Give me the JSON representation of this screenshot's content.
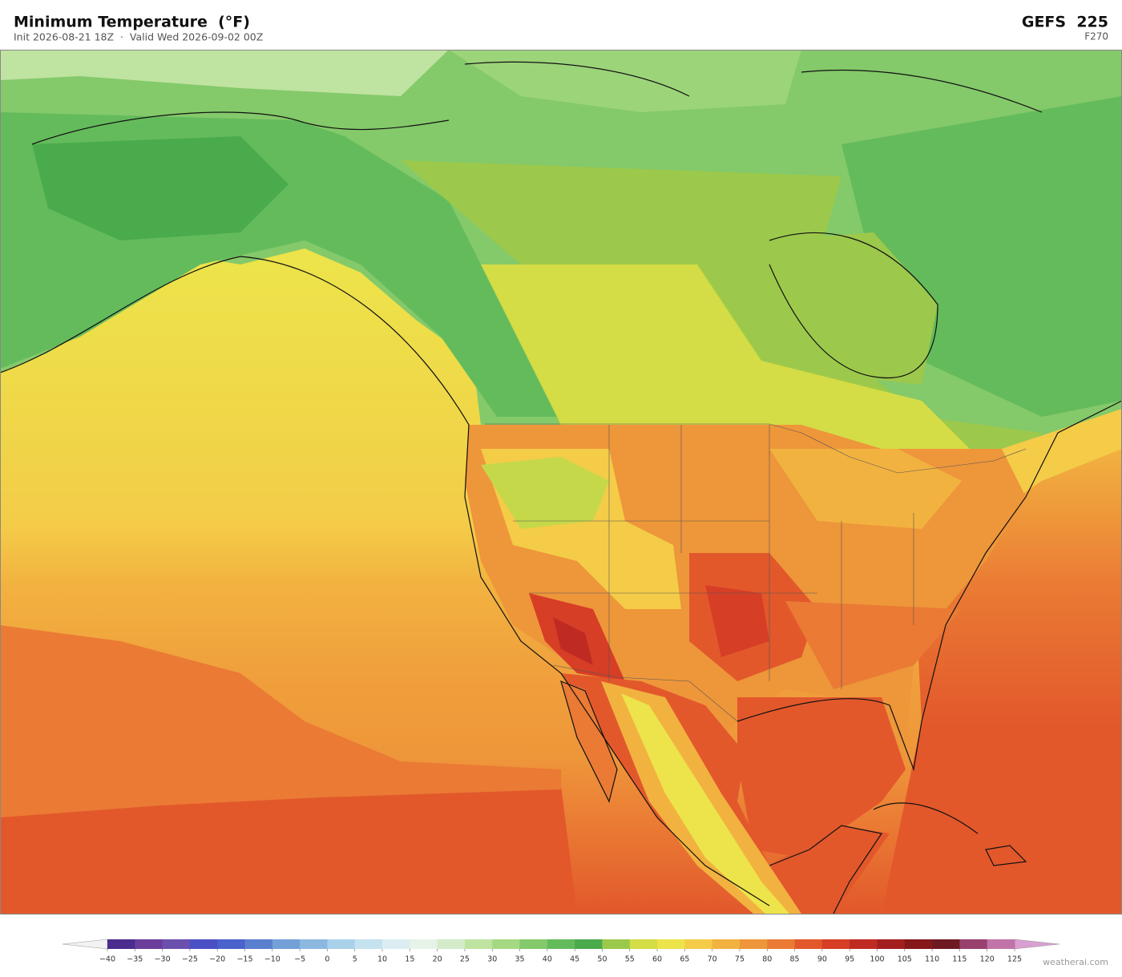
{
  "header": {
    "title": "Minimum Temperature  (°F)",
    "subtitle": "Init 2026-08-21 18Z  ·  Valid Wed 2026-09-02 00Z",
    "model": "GEFS  225",
    "forecast_hour": "F270"
  },
  "colorbar": {
    "ticks": [
      {
        "value": -40,
        "label": "−40"
      },
      {
        "value": -35,
        "label": "−35"
      },
      {
        "value": -30,
        "label": "−30"
      },
      {
        "value": -25,
        "label": "−25"
      },
      {
        "value": -20,
        "label": "−20"
      },
      {
        "value": -15,
        "label": "−15"
      },
      {
        "value": -10,
        "label": "−10"
      },
      {
        "value": -5,
        "label": "−5"
      },
      0,
      5,
      10,
      15,
      20,
      25,
      30,
      35,
      40,
      45,
      50,
      55,
      60,
      65,
      70,
      75,
      80,
      85,
      90,
      95,
      100,
      105,
      110,
      115,
      120,
      125
    ],
    "colors": [
      "#4a2c8f",
      "#6a3d9a",
      "#6b4fae",
      "#4b4fc4",
      "#4a62cc",
      "#5b7fcf",
      "#74a0d8",
      "#8cb8e0",
      "#a9d2ea",
      "#c4e2f0",
      "#dcedf2",
      "#e6f3e8",
      "#d3ebc8",
      "#bfe3a0",
      "#a5d882",
      "#84c96a",
      "#64bb5c",
      "#4aab4c",
      "#9cc94b",
      "#d4dc46",
      "#ede34a",
      "#f4cc48",
      "#f2b240",
      "#ee963a",
      "#ea7a34",
      "#e2582b",
      "#d63e26",
      "#bf2b22",
      "#a31e1e",
      "#861819",
      "#6e1a22",
      "#98406e",
      "#c074a8"
    ],
    "under_color": "#f2f2f2",
    "over_color": "#d8a0d0"
  },
  "footer": {
    "credit": "weatherai.com"
  }
}
